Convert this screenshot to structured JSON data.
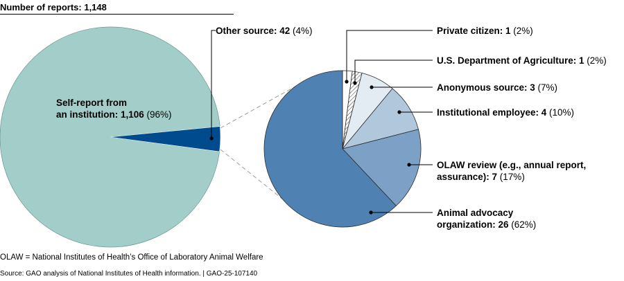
{
  "header": {
    "total_label": "Number of reports: 1,148"
  },
  "chart_data": [
    {
      "type": "pie",
      "slices": [
        {
          "bold": "Self-report from",
          "bold2": "an institution: 1,106",
          "pct": "(96%)",
          "label_lines": [
            "Self-report from",
            "an institution: 1,106 (96%)"
          ],
          "value": 1106,
          "percent": 96,
          "color": "#a3cdc9"
        },
        {
          "bold": "Other source: 42",
          "pct": "(4%)",
          "value": 42,
          "percent": 4,
          "color": "#004b8d"
        }
      ]
    },
    {
      "type": "pie",
      "slices": [
        {
          "bold": "Private citizen: 1",
          "pct": "(2%)",
          "value": 1,
          "percent": 2,
          "color": "#ffffff"
        },
        {
          "bold": "U.S. Department of Agriculture: 1",
          "pct": "(2%)",
          "value": 1,
          "percent": 2,
          "color": "hatched"
        },
        {
          "bold": "Anonymous source: 3",
          "pct": "(7%)",
          "value": 3,
          "percent": 7,
          "color": "#e4ecf3"
        },
        {
          "bold": "Institutional employee: 4",
          "pct": "(10%)",
          "value": 4,
          "percent": 10,
          "color": "#b1c7dc"
        },
        {
          "bold": "OLAW review (e.g., annual report,",
          "bold2": "assurance): 7",
          "pct": "(17%)",
          "value": 7,
          "percent": 17,
          "color": "#7da1c6"
        },
        {
          "bold": "Animal advocacy",
          "bold2": "organization: 26",
          "pct": "(62%)",
          "value": 26,
          "percent": 62,
          "color": "#4f82b3"
        }
      ]
    }
  ],
  "notes": {
    "abbrev": "OLAW = National Institutes of Health’s Office of Laboratory Animal Welfare",
    "source": "Source: GAO analysis of National Institutes of Health information.  |  GAO-25-107140"
  }
}
